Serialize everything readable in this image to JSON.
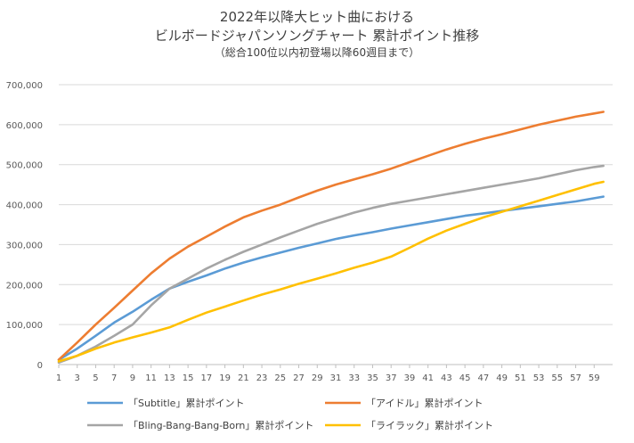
{
  "chart_data": {
    "type": "line",
    "title_lines": [
      "2022年以降大ヒット曲における",
      "ビルボードジャパンソングチャート 累計ポイント推移"
    ],
    "subtitle": "（総合100位以内初登場以降60週目まで）",
    "xlabel": "",
    "ylabel": "",
    "ylim": [
      0,
      700000
    ],
    "y_ticks": [
      "0",
      "100,000",
      "200,000",
      "300,000",
      "400,000",
      "500,000",
      "600,000",
      "700,000"
    ],
    "x_ticks": [
      "1",
      "3",
      "5",
      "7",
      "9",
      "11",
      "13",
      "15",
      "17",
      "19",
      "21",
      "23",
      "25",
      "27",
      "29",
      "31",
      "33",
      "35",
      "37",
      "39",
      "41",
      "43",
      "45",
      "47",
      "49",
      "51",
      "53",
      "55",
      "57",
      "59"
    ],
    "grid": true,
    "legend_position": "bottom",
    "series": [
      {
        "name": "「Subtitle」累計ポイント",
        "color": "#5b9bd5",
        "points": [
          [
            1,
            12000
          ],
          [
            3,
            40000
          ],
          [
            5,
            72000
          ],
          [
            7,
            105000
          ],
          [
            9,
            132000
          ],
          [
            11,
            162000
          ],
          [
            13,
            190000
          ],
          [
            15,
            207000
          ],
          [
            17,
            223000
          ],
          [
            19,
            240000
          ],
          [
            21,
            255000
          ],
          [
            23,
            268000
          ],
          [
            25,
            280000
          ],
          [
            27,
            292000
          ],
          [
            29,
            303000
          ],
          [
            31,
            314000
          ],
          [
            33,
            323000
          ],
          [
            35,
            331000
          ],
          [
            37,
            340000
          ],
          [
            39,
            348000
          ],
          [
            41,
            356000
          ],
          [
            43,
            364000
          ],
          [
            45,
            372000
          ],
          [
            47,
            378000
          ],
          [
            49,
            384000
          ],
          [
            51,
            390000
          ],
          [
            53,
            396000
          ],
          [
            55,
            402000
          ],
          [
            57,
            408000
          ],
          [
            59,
            416000
          ],
          [
            60,
            420000
          ]
        ]
      },
      {
        "name": "「アイドル」累計ポイント",
        "color": "#ed7d31",
        "points": [
          [
            1,
            12000
          ],
          [
            3,
            55000
          ],
          [
            5,
            100000
          ],
          [
            7,
            142000
          ],
          [
            9,
            185000
          ],
          [
            11,
            228000
          ],
          [
            13,
            265000
          ],
          [
            15,
            295000
          ],
          [
            17,
            320000
          ],
          [
            19,
            345000
          ],
          [
            21,
            368000
          ],
          [
            23,
            385000
          ],
          [
            25,
            400000
          ],
          [
            27,
            418000
          ],
          [
            29,
            435000
          ],
          [
            31,
            450000
          ],
          [
            33,
            463000
          ],
          [
            35,
            476000
          ],
          [
            37,
            490000
          ],
          [
            39,
            506000
          ],
          [
            41,
            522000
          ],
          [
            43,
            538000
          ],
          [
            45,
            552000
          ],
          [
            47,
            565000
          ],
          [
            49,
            576000
          ],
          [
            51,
            588000
          ],
          [
            53,
            600000
          ],
          [
            55,
            610000
          ],
          [
            57,
            620000
          ],
          [
            59,
            628000
          ],
          [
            60,
            632000
          ]
        ]
      },
      {
        "name": "「Bling-Bang-Bang-Born」累計ポイント",
        "color": "#a5a5a5",
        "points": [
          [
            1,
            5000
          ],
          [
            3,
            22000
          ],
          [
            5,
            45000
          ],
          [
            7,
            72000
          ],
          [
            9,
            100000
          ],
          [
            11,
            148000
          ],
          [
            13,
            190000
          ],
          [
            15,
            215000
          ],
          [
            17,
            240000
          ],
          [
            19,
            262000
          ],
          [
            21,
            282000
          ],
          [
            23,
            300000
          ],
          [
            25,
            318000
          ],
          [
            27,
            335000
          ],
          [
            29,
            352000
          ],
          [
            31,
            366000
          ],
          [
            33,
            380000
          ],
          [
            35,
            392000
          ],
          [
            37,
            402000
          ],
          [
            39,
            410000
          ],
          [
            41,
            418000
          ],
          [
            43,
            426000
          ],
          [
            45,
            434000
          ],
          [
            47,
            442000
          ],
          [
            49,
            450000
          ],
          [
            51,
            458000
          ],
          [
            53,
            466000
          ],
          [
            55,
            476000
          ],
          [
            57,
            486000
          ],
          [
            59,
            494000
          ],
          [
            60,
            497000
          ]
        ]
      },
      {
        "name": "「ライラック」累計ポイント",
        "color": "#ffc000",
        "points": [
          [
            1,
            8000
          ],
          [
            3,
            22000
          ],
          [
            5,
            40000
          ],
          [
            7,
            55000
          ],
          [
            9,
            68000
          ],
          [
            11,
            80000
          ],
          [
            13,
            93000
          ],
          [
            15,
            112000
          ],
          [
            17,
            130000
          ],
          [
            19,
            145000
          ],
          [
            21,
            160000
          ],
          [
            23,
            175000
          ],
          [
            25,
            188000
          ],
          [
            27,
            202000
          ],
          [
            29,
            215000
          ],
          [
            31,
            228000
          ],
          [
            33,
            242000
          ],
          [
            35,
            255000
          ],
          [
            37,
            270000
          ],
          [
            39,
            292000
          ],
          [
            41,
            315000
          ],
          [
            43,
            335000
          ],
          [
            45,
            352000
          ],
          [
            47,
            368000
          ],
          [
            49,
            382000
          ],
          [
            51,
            396000
          ],
          [
            53,
            410000
          ],
          [
            55,
            424000
          ],
          [
            57,
            438000
          ],
          [
            59,
            452000
          ],
          [
            60,
            457000
          ]
        ]
      }
    ]
  }
}
